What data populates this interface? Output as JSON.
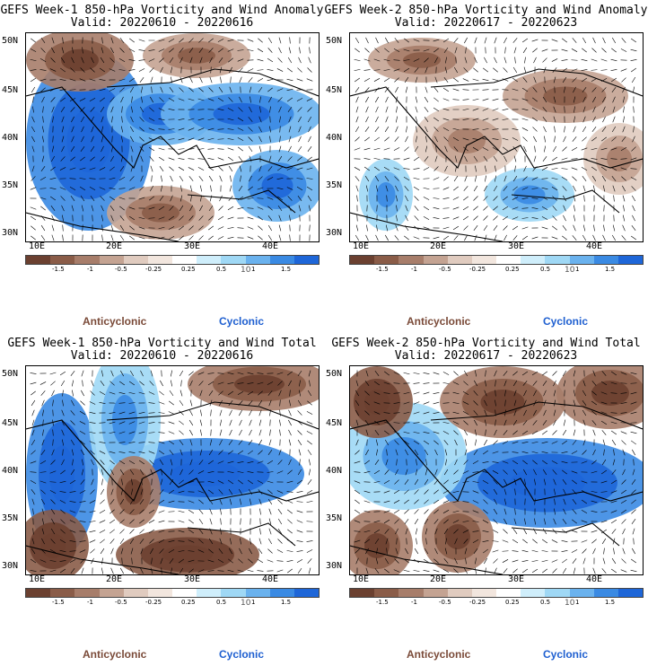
{
  "panels": [
    {
      "title": "GEFS Week-1 850-hPa Vorticity and Wind Anomaly",
      "valid": "Valid: 20220610 - 20220616"
    },
    {
      "title": "GEFS Week-2 850-hPa Vorticity and Wind Anomaly",
      "valid": "Valid: 20220617 - 20220623"
    },
    {
      "title": "GEFS Week-1 850-hPa Vorticity and Wind Total",
      "valid": "Valid: 20220610 - 20220616"
    },
    {
      "title": "GEFS Week-2 850-hPa Vorticity and Wind Total",
      "valid": "Valid: 20220617 - 20220623"
    }
  ],
  "axes": {
    "lat_labels": [
      "50N",
      "45N",
      "40N",
      "35N",
      "30N"
    ],
    "lon_labels": [
      "10E",
      "20E",
      "30E",
      "40E"
    ]
  },
  "legend": {
    "labels": [
      "-1.5",
      "-1",
      "-0.5",
      "-0.25",
      "0.25",
      "0.5",
      "1",
      "1.5"
    ],
    "scale": "10",
    "anticyclonic": "Anticyclonic",
    "cyclonic": "Cyclonic",
    "colors": [
      "#6b4030",
      "#8a5c48",
      "#a77d6a",
      "#c4a392",
      "#e0cbbf",
      "#f2e6de",
      "#ffffff",
      "#cfeefb",
      "#9fd8f5",
      "#6ab2ee",
      "#3a8ae3",
      "#1e66d8"
    ]
  }
}
